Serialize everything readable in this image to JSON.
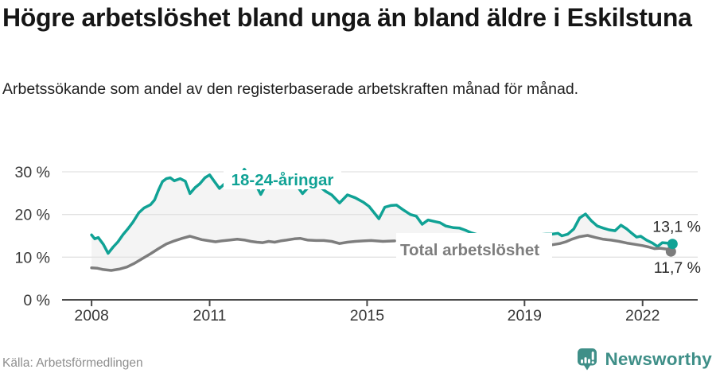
{
  "header": {
    "title": "Högre arbetslöshet bland unga än bland äldre i Eskilstuna",
    "subtitle": "Arbetssökande som andel av den registerbaserade arbetskraften månad för månad."
  },
  "footer": {
    "source": "Källa: Arbetsförmedlingen",
    "brand": "Newsworthy"
  },
  "colors": {
    "young_line": "#10A295",
    "total_line": "#7D7D7D",
    "between_fill": "#F4F4F4",
    "gridline": "#E2E2E2",
    "axis": "#4A4A4A",
    "tick_text": "#383838",
    "end_label_text": "#2B2B2B",
    "brand_teal": "#3F8F88"
  },
  "chart_data": {
    "type": "line",
    "title": "Högre arbetslöshet bland unga än bland äldre i Eskilstuna",
    "subtitle": "Arbetssökande som andel av den registerbaserade arbetskraften månad för månad.",
    "unit": "%",
    "x_ticks": [
      2008,
      2011,
      2015,
      2019,
      2022
    ],
    "x_tick_labels": [
      "2008",
      "2011",
      "2015",
      "2019",
      "2022"
    ],
    "y_ticks": [
      0,
      10,
      20,
      30
    ],
    "y_tick_labels": [
      "0 %",
      "10 %",
      "20 %",
      "30 %"
    ],
    "xlim": [
      2007.25,
      2023.4
    ],
    "ylim": [
      0,
      33.9
    ],
    "grid": "horizontal",
    "legend_position": "inline-labels",
    "series": [
      {
        "name": "18-24-åringar",
        "color": "#10A295",
        "end_label": "13,1 %",
        "end_value": 13.1,
        "segments": [
          [
            [
              2008.0,
              15.2
            ],
            [
              2008.08,
              14.3
            ],
            [
              2008.17,
              14.6
            ],
            [
              2008.3,
              13.0
            ],
            [
              2008.42,
              10.9
            ],
            [
              2008.55,
              12.4
            ],
            [
              2008.67,
              13.6
            ],
            [
              2008.8,
              15.3
            ],
            [
              2008.92,
              16.6
            ],
            [
              2009.05,
              18.2
            ],
            [
              2009.2,
              20.4
            ],
            [
              2009.33,
              21.5
            ],
            [
              2009.5,
              22.3
            ],
            [
              2009.6,
              23.4
            ],
            [
              2009.7,
              25.7
            ],
            [
              2009.8,
              27.7
            ],
            [
              2009.9,
              28.4
            ],
            [
              2010.0,
              28.6
            ],
            [
              2010.1,
              27.9
            ],
            [
              2010.25,
              28.4
            ],
            [
              2010.38,
              27.8
            ],
            [
              2010.5,
              24.9
            ],
            [
              2010.63,
              26.3
            ],
            [
              2010.75,
              27.2
            ],
            [
              2010.88,
              28.6
            ],
            [
              2011.0,
              29.3
            ],
            [
              2011.13,
              27.6
            ],
            [
              2011.25,
              26.1
            ],
            [
              2011.38,
              27.2
            ],
            [
              2011.5,
              27.7
            ],
            [
              2011.63,
              27.4
            ],
            [
              2011.75,
              28.3
            ],
            [
              2011.88,
              30.6
            ],
            [
              2012.0,
              29.0
            ],
            [
              2012.13,
              27.8
            ],
            [
              2012.3,
              24.7
            ],
            [
              2012.45,
              27.3
            ],
            [
              2012.6,
              28.3
            ],
            [
              2012.7,
              28.0
            ],
            [
              2012.85,
              27.7
            ],
            [
              2013.0,
              28.1
            ],
            [
              2013.15,
              27.6
            ],
            [
              2013.36,
              24.9
            ],
            [
              2013.5,
              26.3
            ],
            [
              2013.65,
              26.9
            ],
            [
              2013.8,
              26.5
            ],
            [
              2013.95,
              25.4
            ],
            [
              2014.1,
              24.6
            ],
            [
              2014.3,
              22.7
            ],
            [
              2014.5,
              24.6
            ],
            [
              2014.7,
              23.9
            ],
            [
              2014.9,
              22.9
            ],
            [
              2015.05,
              21.9
            ],
            [
              2015.3,
              19.0
            ],
            [
              2015.45,
              21.7
            ],
            [
              2015.6,
              22.1
            ],
            [
              2015.75,
              22.2
            ],
            [
              2015.9,
              21.2
            ],
            [
              2016.1,
              20.0
            ],
            [
              2016.25,
              19.6
            ],
            [
              2016.4,
              17.7
            ],
            [
              2016.55,
              18.7
            ],
            [
              2016.7,
              18.4
            ],
            [
              2016.85,
              18.1
            ],
            [
              2017.0,
              17.3
            ],
            [
              2017.2,
              16.9
            ],
            [
              2017.35,
              16.8
            ],
            [
              2017.5,
              16.3
            ],
            [
              2017.65,
              15.7
            ],
            [
              2017.8,
              15.3
            ],
            [
              2018.05,
              14.9
            ]
          ],
          [
            [
              2019.4,
              15.3
            ],
            [
              2019.55,
              15.4
            ],
            [
              2019.7,
              15.4
            ],
            [
              2019.85,
              15.6
            ],
            [
              2019.95,
              15.0
            ],
            [
              2020.1,
              15.4
            ],
            [
              2020.25,
              16.6
            ],
            [
              2020.4,
              19.2
            ],
            [
              2020.55,
              20.1
            ],
            [
              2020.7,
              18.5
            ],
            [
              2020.85,
              17.3
            ],
            [
              2021.0,
              16.8
            ],
            [
              2021.15,
              16.4
            ],
            [
              2021.3,
              16.2
            ],
            [
              2021.45,
              17.5
            ],
            [
              2021.6,
              16.6
            ],
            [
              2021.7,
              15.8
            ],
            [
              2021.85,
              14.7
            ],
            [
              2021.95,
              14.9
            ],
            [
              2022.1,
              14.0
            ],
            [
              2022.25,
              13.3
            ],
            [
              2022.38,
              12.5
            ],
            [
              2022.5,
              13.4
            ],
            [
              2022.62,
              13.3
            ],
            [
              2022.76,
              13.1
            ]
          ]
        ]
      },
      {
        "name": "Total arbetslöshet",
        "color": "#7D7D7D",
        "end_label": "11,7 %",
        "end_value": 11.7,
        "segments": [
          [
            [
              2008.0,
              7.5
            ],
            [
              2008.15,
              7.4
            ],
            [
              2008.3,
              7.1
            ],
            [
              2008.5,
              6.9
            ],
            [
              2008.7,
              7.2
            ],
            [
              2008.9,
              7.7
            ],
            [
              2009.1,
              8.6
            ],
            [
              2009.3,
              9.7
            ],
            [
              2009.5,
              10.8
            ],
            [
              2009.7,
              12.0
            ],
            [
              2009.9,
              13.1
            ],
            [
              2010.1,
              13.8
            ],
            [
              2010.3,
              14.4
            ],
            [
              2010.5,
              14.9
            ],
            [
              2010.65,
              14.5
            ],
            [
              2010.8,
              14.1
            ],
            [
              2011.0,
              13.8
            ],
            [
              2011.15,
              13.6
            ],
            [
              2011.3,
              13.8
            ],
            [
              2011.5,
              14.0
            ],
            [
              2011.7,
              14.2
            ],
            [
              2011.9,
              14.0
            ],
            [
              2012.05,
              13.7
            ],
            [
              2012.2,
              13.5
            ],
            [
              2012.35,
              13.4
            ],
            [
              2012.5,
              13.7
            ],
            [
              2012.65,
              13.5
            ],
            [
              2012.8,
              13.8
            ],
            [
              2012.95,
              14.0
            ],
            [
              2013.15,
              14.3
            ],
            [
              2013.3,
              14.4
            ],
            [
              2013.5,
              14.0
            ],
            [
              2013.7,
              13.9
            ],
            [
              2013.9,
              13.9
            ],
            [
              2014.1,
              13.7
            ],
            [
              2014.3,
              13.2
            ],
            [
              2014.5,
              13.5
            ],
            [
              2014.7,
              13.7
            ],
            [
              2014.9,
              13.8
            ],
            [
              2015.1,
              13.9
            ],
            [
              2015.4,
              13.7
            ],
            [
              2015.7,
              13.8
            ]
          ],
          [
            [
              2019.7,
              12.9
            ],
            [
              2019.9,
              13.2
            ],
            [
              2020.05,
              13.6
            ],
            [
              2020.2,
              14.2
            ],
            [
              2020.4,
              14.8
            ],
            [
              2020.6,
              15.1
            ],
            [
              2020.8,
              14.6
            ],
            [
              2021.0,
              14.2
            ],
            [
              2021.2,
              14.0
            ],
            [
              2021.4,
              13.7
            ],
            [
              2021.6,
              13.3
            ],
            [
              2021.8,
              13.0
            ],
            [
              2022.0,
              12.7
            ],
            [
              2022.15,
              12.4
            ],
            [
              2022.3,
              12.0
            ],
            [
              2022.45,
              12.1
            ],
            [
              2022.6,
              11.9
            ],
            [
              2022.76,
              11.7
            ]
          ]
        ]
      }
    ]
  }
}
